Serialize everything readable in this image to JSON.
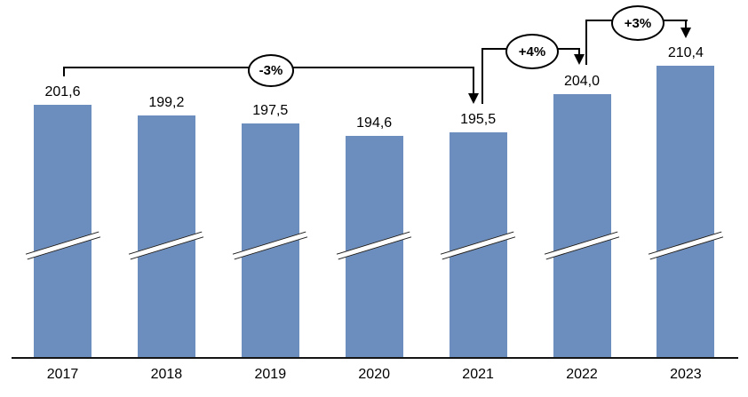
{
  "chart_data": {
    "type": "bar",
    "title": "",
    "xlabel": "",
    "ylabel": "",
    "legend": false,
    "grid": false,
    "axis_break": true,
    "categories": [
      "2017",
      "2018",
      "2019",
      "2020",
      "2021",
      "2022",
      "2023"
    ],
    "values": [
      201.6,
      199.2,
      197.5,
      194.6,
      195.5,
      204.0,
      210.4
    ],
    "value_labels": [
      "201,6",
      "199,2",
      "197,5",
      "194,6",
      "195,5",
      "204,0",
      "210,4"
    ],
    "bar_color": "#6C8EBF",
    "annotations": [
      {
        "label": "-3%",
        "from": "2017",
        "to": "2021"
      },
      {
        "label": "+4%",
        "from": "2021",
        "to": "2022"
      },
      {
        "label": "+3%",
        "from": "2022",
        "to": "2023"
      }
    ]
  }
}
